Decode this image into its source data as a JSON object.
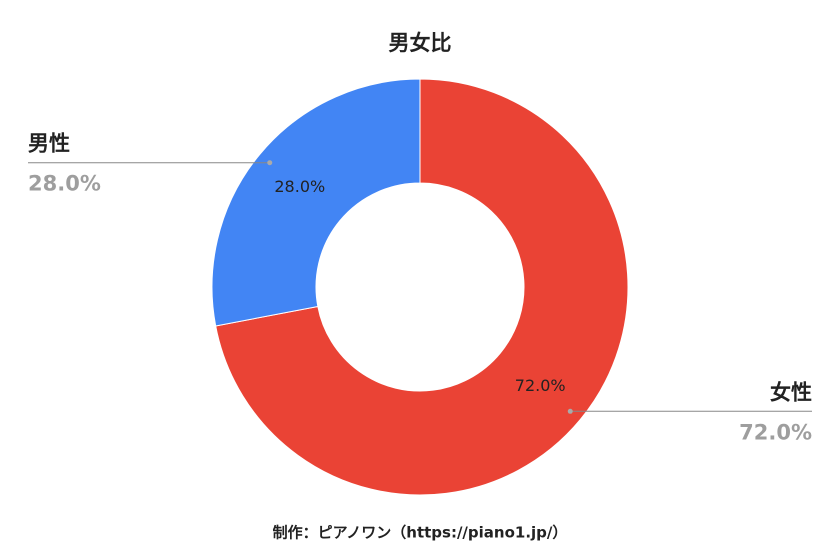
{
  "chart_data": {
    "type": "pie",
    "donut": true,
    "title": "男女比",
    "categories": [
      "女性",
      "男性"
    ],
    "values": [
      72,
      28
    ],
    "value_labels": [
      "72.0%",
      "28.0%"
    ],
    "colors": [
      "#ea4335",
      "#4285f4"
    ],
    "source": "制作：ピアノワン（https://piano1.jp/）"
  }
}
